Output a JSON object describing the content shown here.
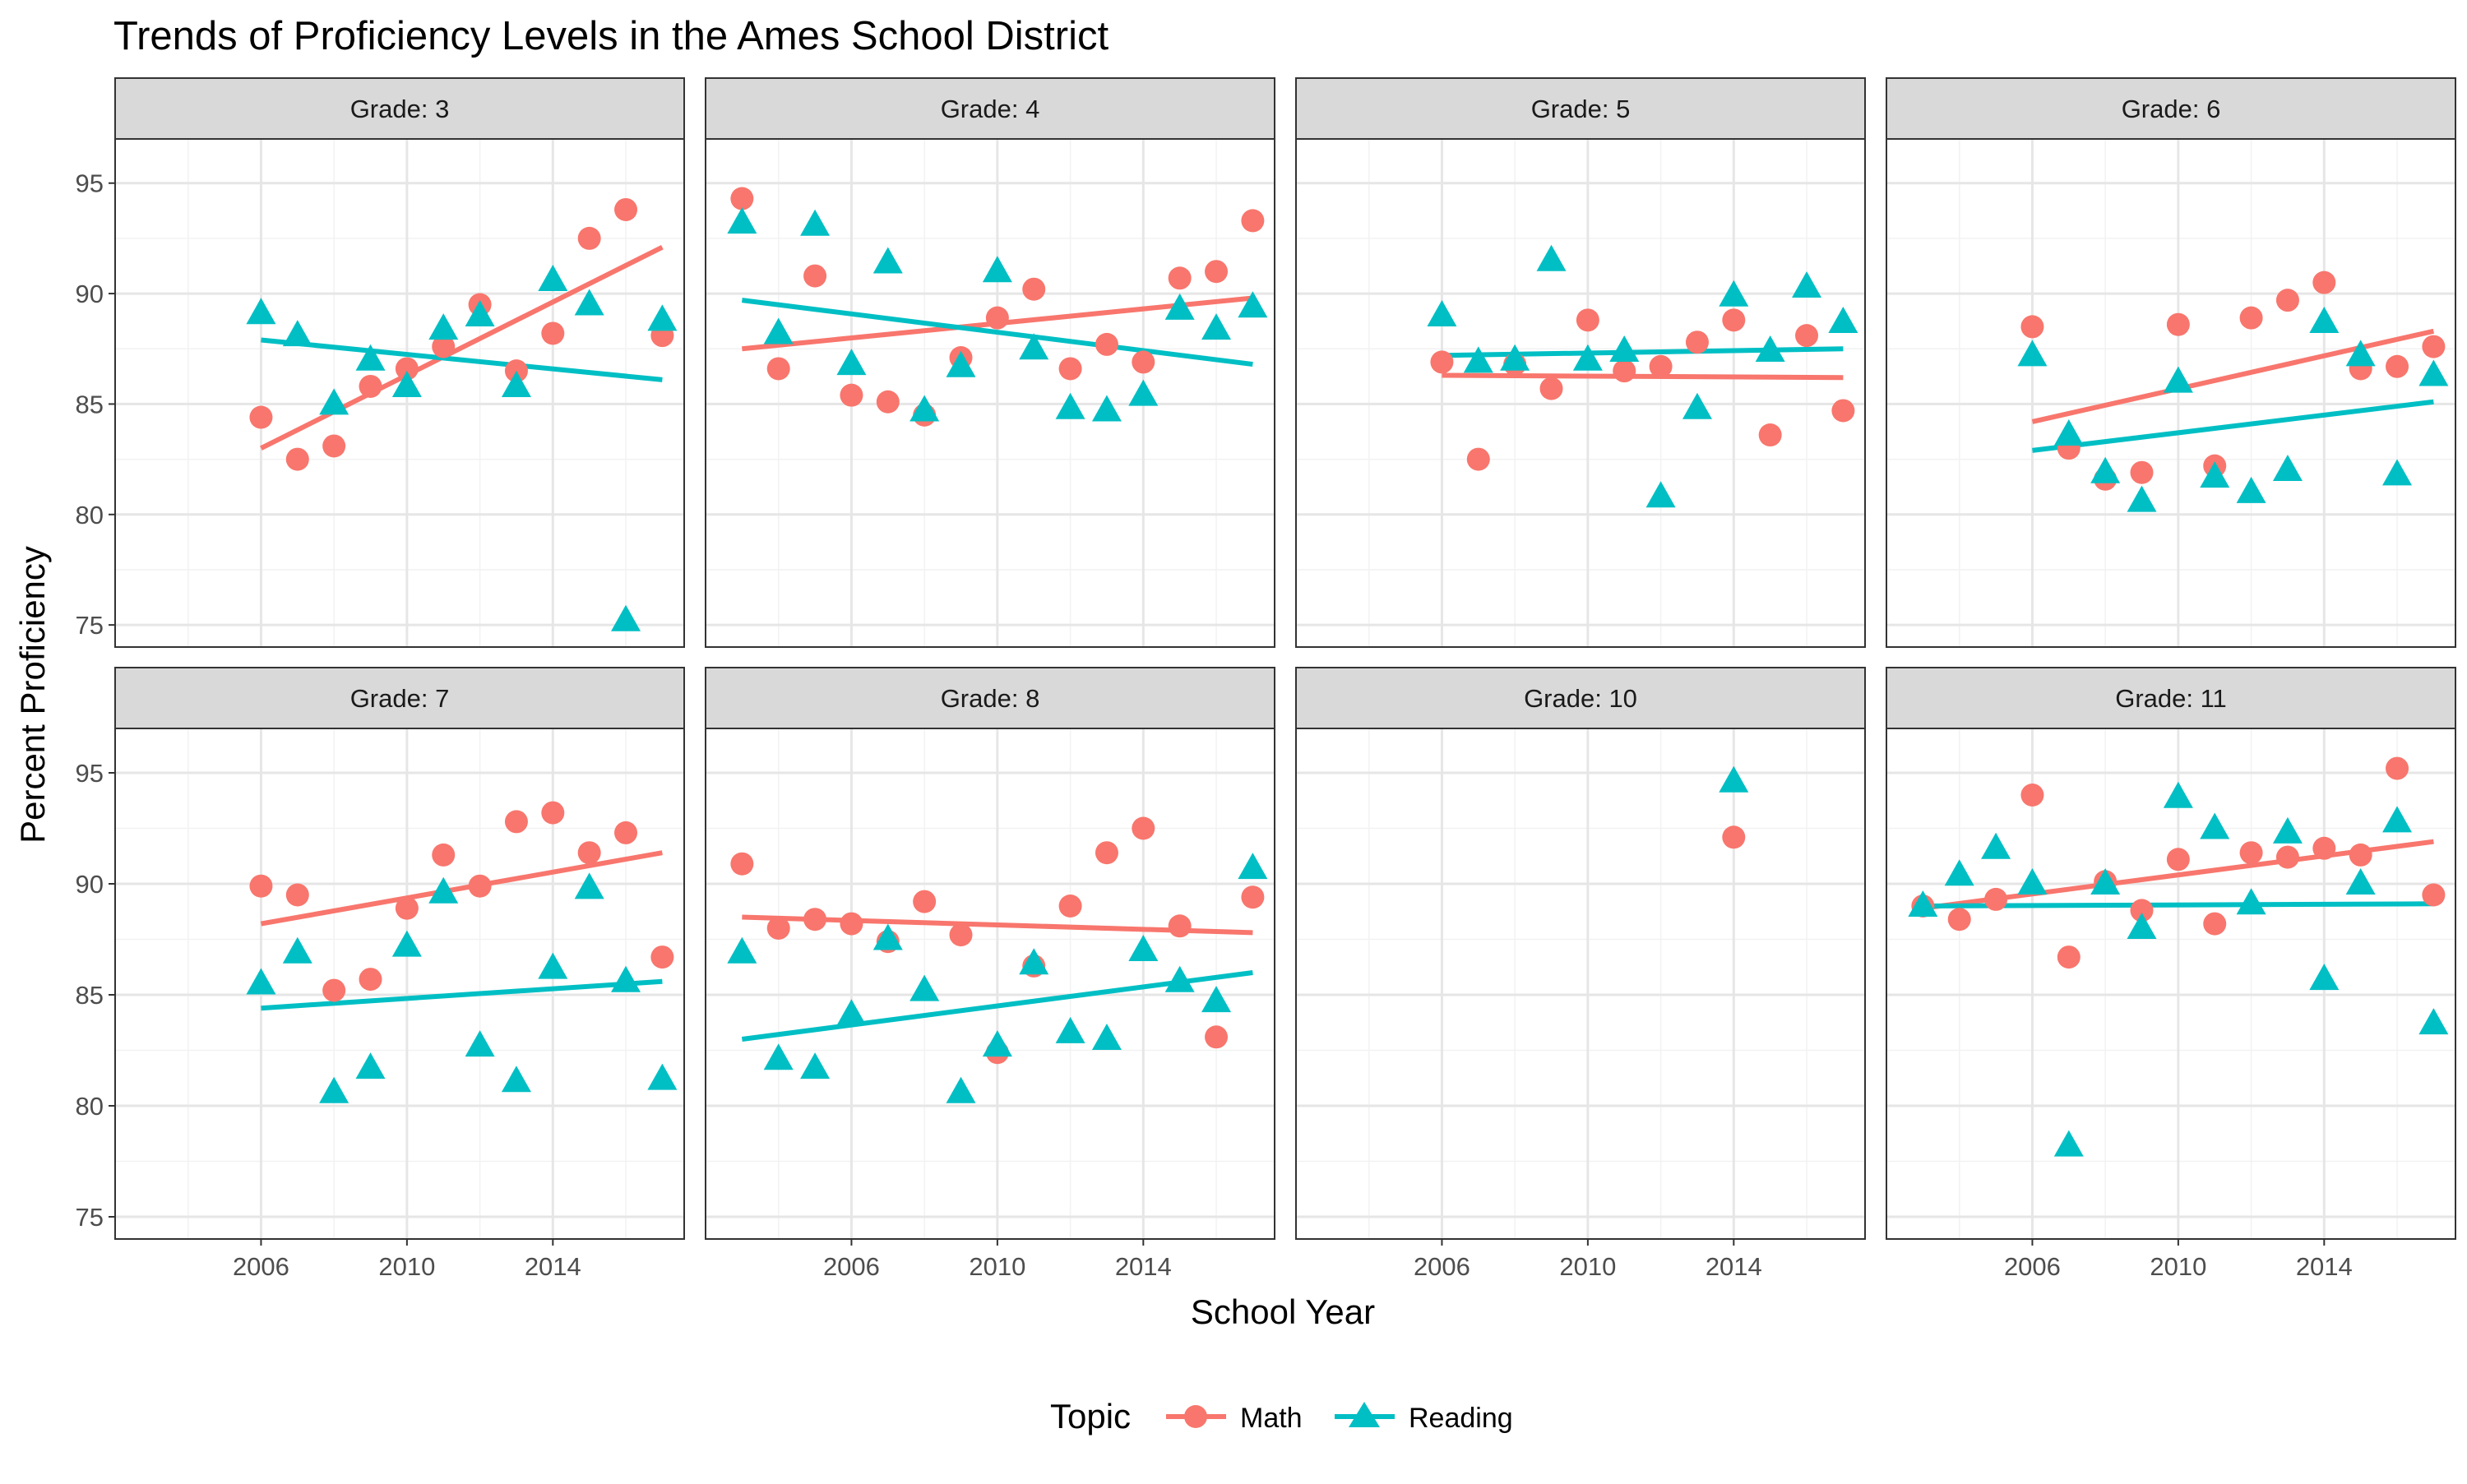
{
  "chart_data": {
    "type": "scatter",
    "title": "Trends of Proficiency Levels in the Ames School District",
    "xlabel": "School Year",
    "ylabel": "Percent Proficiency",
    "xlim": [
      2002,
      2017.6
    ],
    "ylim": [
      74,
      97
    ],
    "x_ticks": [
      2006,
      2010,
      2014
    ],
    "y_ticks": [
      75,
      80,
      85,
      90,
      95
    ],
    "grid": true,
    "facet_layout": "2 rows x 4 columns",
    "legend": {
      "title": "Topic",
      "position": "bottom",
      "entries": [
        {
          "name": "Math",
          "color": "#F8766D",
          "shape": "circle"
        },
        {
          "name": "Reading",
          "color": "#00BFC4",
          "shape": "triangle"
        }
      ]
    },
    "colors": {
      "Math": "#F8766D",
      "Reading": "#00BFC4",
      "strip": "#d9d9d9",
      "grid": "#ebebeb"
    },
    "panels": [
      {
        "strip": "Grade: 3",
        "math": [
          [
            2006,
            84.4
          ],
          [
            2007,
            82.5
          ],
          [
            2008,
            83.1
          ],
          [
            2009,
            85.8
          ],
          [
            2010,
            86.6
          ],
          [
            2011,
            87.6
          ],
          [
            2012,
            89.5
          ],
          [
            2013,
            86.5
          ],
          [
            2014,
            88.2
          ],
          [
            2015,
            92.5
          ],
          [
            2016,
            93.8
          ],
          [
            2017,
            88.1
          ]
        ],
        "reading": [
          [
            2006,
            89.1
          ],
          [
            2007,
            88.1
          ],
          [
            2008,
            85.0
          ],
          [
            2009,
            87.0
          ],
          [
            2010,
            85.8
          ],
          [
            2011,
            88.4
          ],
          [
            2012,
            89.0
          ],
          [
            2013,
            85.8
          ],
          [
            2014,
            90.6
          ],
          [
            2015,
            89.5
          ],
          [
            2016,
            75.2
          ],
          [
            2017,
            88.8
          ]
        ],
        "math_fit": [
          [
            2006,
            83.0
          ],
          [
            2017,
            92.1
          ]
        ],
        "reading_fit": [
          [
            2006,
            87.9
          ],
          [
            2017,
            86.1
          ]
        ]
      },
      {
        "strip": "Grade: 4",
        "math": [
          [
            2003,
            94.3
          ],
          [
            2004,
            86.6
          ],
          [
            2005,
            90.8
          ],
          [
            2006,
            85.4
          ],
          [
            2007,
            85.1
          ],
          [
            2008,
            84.5
          ],
          [
            2009,
            87.1
          ],
          [
            2010,
            88.9
          ],
          [
            2011,
            90.2
          ],
          [
            2012,
            86.6
          ],
          [
            2013,
            87.7
          ],
          [
            2014,
            86.9
          ],
          [
            2015,
            90.7
          ],
          [
            2016,
            91.0
          ],
          [
            2017,
            93.3
          ]
        ],
        "reading": [
          [
            2003,
            93.2
          ],
          [
            2004,
            88.2
          ],
          [
            2005,
            93.1
          ],
          [
            2006,
            86.8
          ],
          [
            2007,
            91.4
          ],
          [
            2008,
            84.7
          ],
          [
            2009,
            86.7
          ],
          [
            2010,
            91.0
          ],
          [
            2011,
            87.5
          ],
          [
            2012,
            84.8
          ],
          [
            2013,
            84.7
          ],
          [
            2014,
            85.4
          ],
          [
            2015,
            89.3
          ],
          [
            2016,
            88.4
          ],
          [
            2017,
            89.4
          ]
        ],
        "math_fit": [
          [
            2003,
            87.5
          ],
          [
            2017,
            89.8
          ]
        ],
        "reading_fit": [
          [
            2003,
            89.7
          ],
          [
            2017,
            86.8
          ]
        ]
      },
      {
        "strip": "Grade: 5",
        "math": [
          [
            2006,
            86.9
          ],
          [
            2007,
            82.5
          ],
          [
            2008,
            86.8
          ],
          [
            2009,
            85.7
          ],
          [
            2010,
            88.8
          ],
          [
            2011,
            86.5
          ],
          [
            2012,
            86.7
          ],
          [
            2013,
            87.8
          ],
          [
            2014,
            88.8
          ],
          [
            2015,
            83.6
          ],
          [
            2016,
            88.1
          ],
          [
            2017,
            84.7
          ]
        ],
        "reading": [
          [
            2006,
            89.0
          ],
          [
            2007,
            86.9
          ],
          [
            2008,
            87.0
          ],
          [
            2009,
            91.5
          ],
          [
            2010,
            87.0
          ],
          [
            2011,
            87.4
          ],
          [
            2012,
            80.8
          ],
          [
            2013,
            84.8
          ],
          [
            2014,
            89.9
          ],
          [
            2015,
            87.4
          ],
          [
            2016,
            90.3
          ],
          [
            2017,
            88.7
          ]
        ],
        "math_fit": [
          [
            2006,
            86.3
          ],
          [
            2017,
            86.2
          ]
        ],
        "reading_fit": [
          [
            2006,
            87.2
          ],
          [
            2017,
            87.5
          ]
        ]
      },
      {
        "strip": "Grade: 6",
        "math": [
          [
            2006,
            88.5
          ],
          [
            2007,
            83.0
          ],
          [
            2008,
            81.6
          ],
          [
            2009,
            81.9
          ],
          [
            2010,
            88.6
          ],
          [
            2011,
            82.2
          ],
          [
            2012,
            88.9
          ],
          [
            2013,
            89.7
          ],
          [
            2014,
            90.5
          ],
          [
            2015,
            86.6
          ],
          [
            2016,
            86.7
          ],
          [
            2017,
            87.6
          ]
        ],
        "reading": [
          [
            2006,
            87.2
          ],
          [
            2007,
            83.6
          ],
          [
            2008,
            81.9
          ],
          [
            2009,
            80.6
          ],
          [
            2010,
            86.0
          ],
          [
            2011,
            81.7
          ],
          [
            2012,
            81.0
          ],
          [
            2013,
            82.0
          ],
          [
            2014,
            88.7
          ],
          [
            2015,
            87.2
          ],
          [
            2016,
            81.8
          ],
          [
            2017,
            86.3
          ]
        ],
        "math_fit": [
          [
            2006,
            84.2
          ],
          [
            2017,
            88.3
          ]
        ],
        "reading_fit": [
          [
            2006,
            82.9
          ],
          [
            2017,
            85.1
          ]
        ]
      },
      {
        "strip": "Grade: 7",
        "math": [
          [
            2006,
            89.9
          ],
          [
            2007,
            89.5
          ],
          [
            2008,
            85.2
          ],
          [
            2009,
            85.7
          ],
          [
            2010,
            88.9
          ],
          [
            2011,
            91.3
          ],
          [
            2012,
            89.9
          ],
          [
            2013,
            92.8
          ],
          [
            2014,
            93.2
          ],
          [
            2015,
            91.4
          ],
          [
            2016,
            92.3
          ],
          [
            2017,
            86.7
          ]
        ],
        "reading": [
          [
            2006,
            85.5
          ],
          [
            2007,
            86.9
          ],
          [
            2008,
            80.6
          ],
          [
            2009,
            81.7
          ],
          [
            2010,
            87.2
          ],
          [
            2011,
            89.6
          ],
          [
            2012,
            82.7
          ],
          [
            2013,
            81.1
          ],
          [
            2014,
            86.2
          ],
          [
            2015,
            89.8
          ],
          [
            2016,
            85.6
          ],
          [
            2017,
            81.2
          ]
        ],
        "math_fit": [
          [
            2006,
            88.2
          ],
          [
            2017,
            91.4
          ]
        ],
        "reading_fit": [
          [
            2006,
            84.4
          ],
          [
            2017,
            85.6
          ]
        ]
      },
      {
        "strip": "Grade: 8",
        "math": [
          [
            2003,
            90.9
          ],
          [
            2004,
            88.0
          ],
          [
            2005,
            88.4
          ],
          [
            2006,
            88.2
          ],
          [
            2007,
            87.4
          ],
          [
            2008,
            89.2
          ],
          [
            2009,
            87.7
          ],
          [
            2010,
            82.4
          ],
          [
            2011,
            86.3
          ],
          [
            2012,
            89.0
          ],
          [
            2013,
            91.4
          ],
          [
            2014,
            92.5
          ],
          [
            2015,
            88.1
          ],
          [
            2016,
            83.1
          ],
          [
            2017,
            89.4
          ]
        ],
        "reading": [
          [
            2003,
            86.9
          ],
          [
            2004,
            82.1
          ],
          [
            2005,
            81.7
          ],
          [
            2006,
            84.1
          ],
          [
            2007,
            87.5
          ],
          [
            2008,
            85.2
          ],
          [
            2009,
            80.6
          ],
          [
            2010,
            82.7
          ],
          [
            2011,
            86.4
          ],
          [
            2012,
            83.3
          ],
          [
            2013,
            83.0
          ],
          [
            2014,
            87.0
          ],
          [
            2015,
            85.6
          ],
          [
            2016,
            84.7
          ],
          [
            2017,
            90.7
          ]
        ],
        "math_fit": [
          [
            2003,
            88.5
          ],
          [
            2017,
            87.8
          ]
        ],
        "reading_fit": [
          [
            2003,
            83.0
          ],
          [
            2017,
            86.0
          ]
        ]
      },
      {
        "strip": "Grade: 10",
        "math": [
          [
            2014,
            92.1
          ]
        ],
        "reading": [
          [
            2014,
            94.6
          ]
        ],
        "math_fit": [],
        "reading_fit": []
      },
      {
        "strip": "Grade: 11",
        "math": [
          [
            2003,
            89.0
          ],
          [
            2004,
            88.4
          ],
          [
            2005,
            89.3
          ],
          [
            2006,
            94.0
          ],
          [
            2007,
            86.7
          ],
          [
            2008,
            90.1
          ],
          [
            2009,
            88.8
          ],
          [
            2010,
            91.1
          ],
          [
            2011,
            88.2
          ],
          [
            2012,
            91.4
          ],
          [
            2013,
            91.2
          ],
          [
            2014,
            91.6
          ],
          [
            2015,
            91.3
          ],
          [
            2016,
            95.2
          ],
          [
            2017,
            89.5
          ]
        ],
        "reading": [
          [
            2003,
            89.0
          ],
          [
            2004,
            90.4
          ],
          [
            2005,
            91.6
          ],
          [
            2006,
            90.0
          ],
          [
            2007,
            78.2
          ],
          [
            2008,
            90.0
          ],
          [
            2009,
            88.0
          ],
          [
            2010,
            93.9
          ],
          [
            2011,
            92.5
          ],
          [
            2012,
            89.1
          ],
          [
            2013,
            92.3
          ],
          [
            2014,
            85.7
          ],
          [
            2015,
            90.0
          ],
          [
            2016,
            92.8
          ],
          [
            2017,
            83.7
          ]
        ],
        "math_fit": [
          [
            2003,
            88.9
          ],
          [
            2017,
            91.9
          ]
        ],
        "reading_fit": [
          [
            2003,
            89.0
          ],
          [
            2017,
            89.1
          ]
        ]
      }
    ]
  }
}
